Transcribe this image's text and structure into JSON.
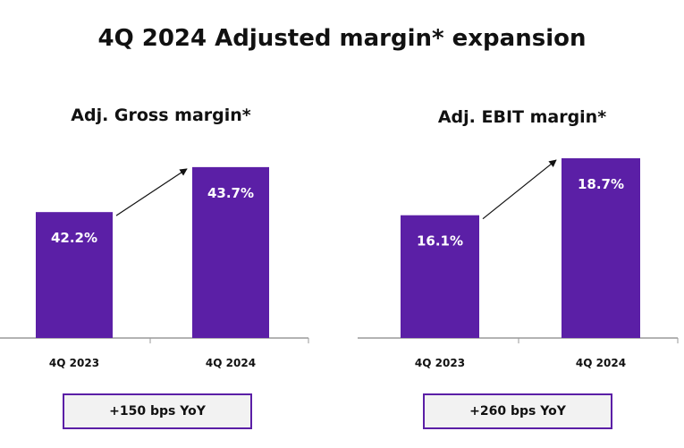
{
  "title": "4Q 2024 Adjusted margin* expansion",
  "colors": {
    "bar": "#5b1fa6",
    "box_border": "#5b1fa6",
    "box_fill": "#f2f2f2"
  },
  "chart_data": [
    {
      "type": "bar",
      "title": "Adj. Gross margin*",
      "categories": [
        "4Q 2023",
        "4Q 2024"
      ],
      "values": [
        42.2,
        43.7
      ],
      "data_labels": [
        "42.2%",
        "43.7%"
      ],
      "ylim": [
        38,
        44.8
      ],
      "grid": false,
      "annotation": "+150 bps YoY"
    },
    {
      "type": "bar",
      "title": "Adj. EBIT margin*",
      "categories": [
        "4Q 2023",
        "4Q 2024"
      ],
      "values": [
        16.1,
        18.7
      ],
      "data_labels": [
        "16.1%",
        "18.7%"
      ],
      "ylim": [
        10.5,
        19.8
      ],
      "grid": false,
      "annotation": "+260 bps YoY"
    }
  ]
}
